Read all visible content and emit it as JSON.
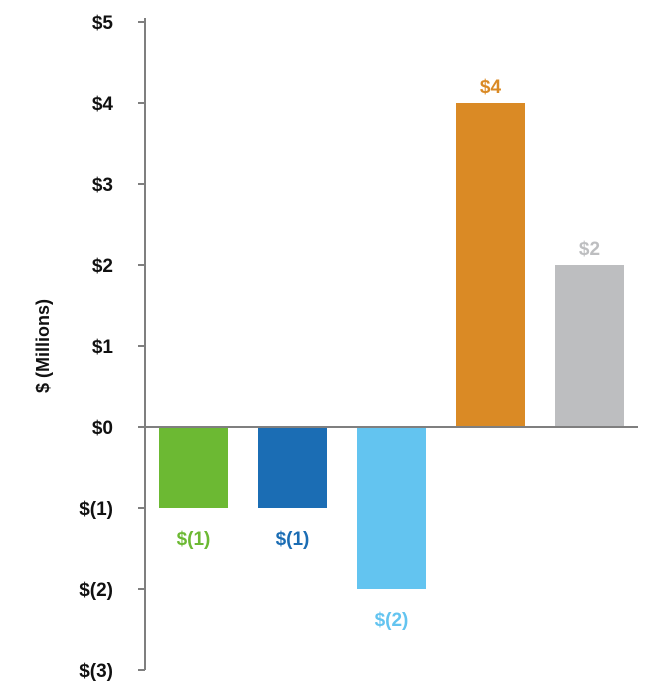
{
  "chart_data": {
    "type": "bar",
    "title": "",
    "xlabel": "",
    "ylabel": "$ (Millions)",
    "ylim": [
      -3,
      5
    ],
    "yticks": [
      5,
      4,
      3,
      2,
      1,
      0,
      -1,
      -2,
      -3
    ],
    "ytick_labels": [
      "$5",
      "$4",
      "$3",
      "$2",
      "$1",
      "$0",
      "$(1)",
      "$(2)",
      "$(3)"
    ],
    "grid": false,
    "legend": "none",
    "categories": [
      "",
      "",
      "",
      "",
      ""
    ],
    "values": [
      -1,
      -1,
      -2,
      4,
      2
    ],
    "data_labels": [
      "$(1)",
      "$(1)",
      "$(2)",
      "$4",
      "$2"
    ],
    "colors": [
      "#6cb933",
      "#1b6db4",
      "#63c4f0",
      "#da8a25",
      "#bdbec0"
    ]
  }
}
